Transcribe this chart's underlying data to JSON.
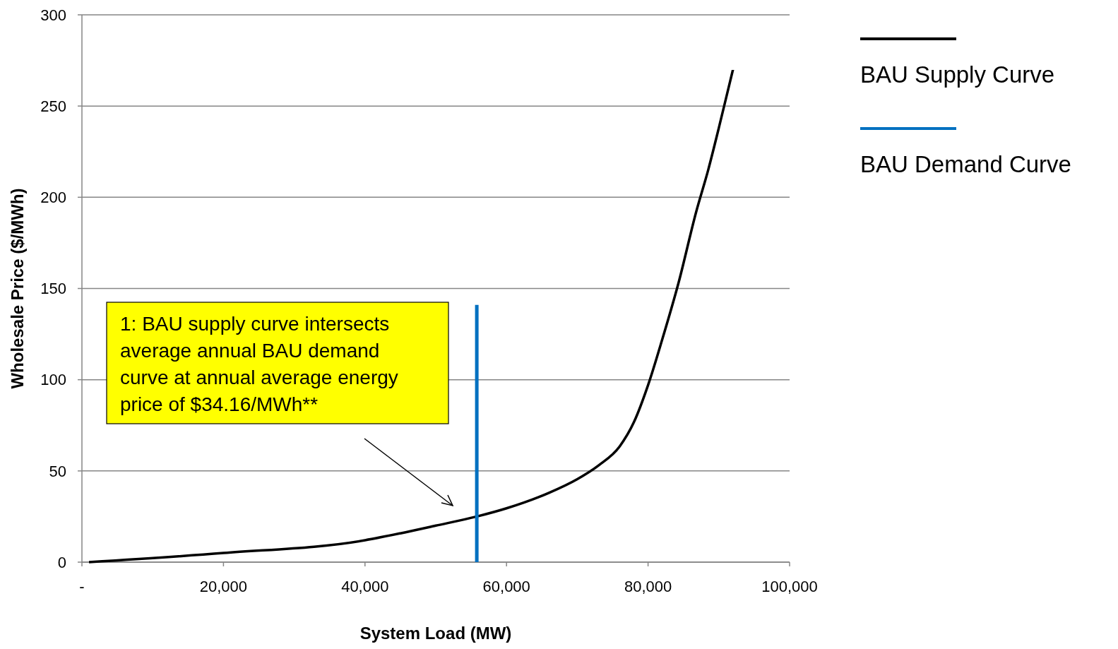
{
  "chart_data": {
    "type": "line",
    "xlabel": "System Load (MW)",
    "ylabel": "Wholesale Price ($/MWh)",
    "xlim": [
      0,
      100000
    ],
    "xticks": [
      {
        "value": 0,
        "label": "-"
      },
      {
        "value": 20000,
        "label": "20,000"
      },
      {
        "value": 40000,
        "label": "40,000"
      },
      {
        "value": 60000,
        "label": "60,000"
      },
      {
        "value": 80000,
        "label": "80,000"
      },
      {
        "value": 100000,
        "label": "100,000"
      }
    ],
    "ylim": [
      0,
      300
    ],
    "yticks": [
      0,
      50,
      100,
      150,
      200,
      250,
      300
    ],
    "grid": "y",
    "legend": "right",
    "marker": "none",
    "line_style": "solid",
    "series": [
      {
        "name": "BAU Supply Curve",
        "color": "#000000",
        "x": [
          1000,
          20000,
          40000,
          45000,
          50000,
          55800,
          60000,
          66000,
          70000,
          73000,
          76000,
          78000,
          80000,
          82000,
          84300,
          86800,
          88500,
          90000,
          91000,
          92000
        ],
        "values": [
          0,
          5,
          12,
          15.8,
          20,
          25,
          29.5,
          38,
          45.5,
          53,
          63.5,
          76.7,
          97,
          122,
          153,
          192,
          215,
          238,
          254,
          270
        ]
      },
      {
        "name": "BAU Demand Curve",
        "color": "#0070c0",
        "x": [
          55800,
          55800
        ],
        "values": [
          0,
          141
        ]
      }
    ],
    "annotations": [
      "1: BAU supply curve intersects average annual BAU demand curve at annual average energy price of $34.16/MWh**"
    ]
  }
}
